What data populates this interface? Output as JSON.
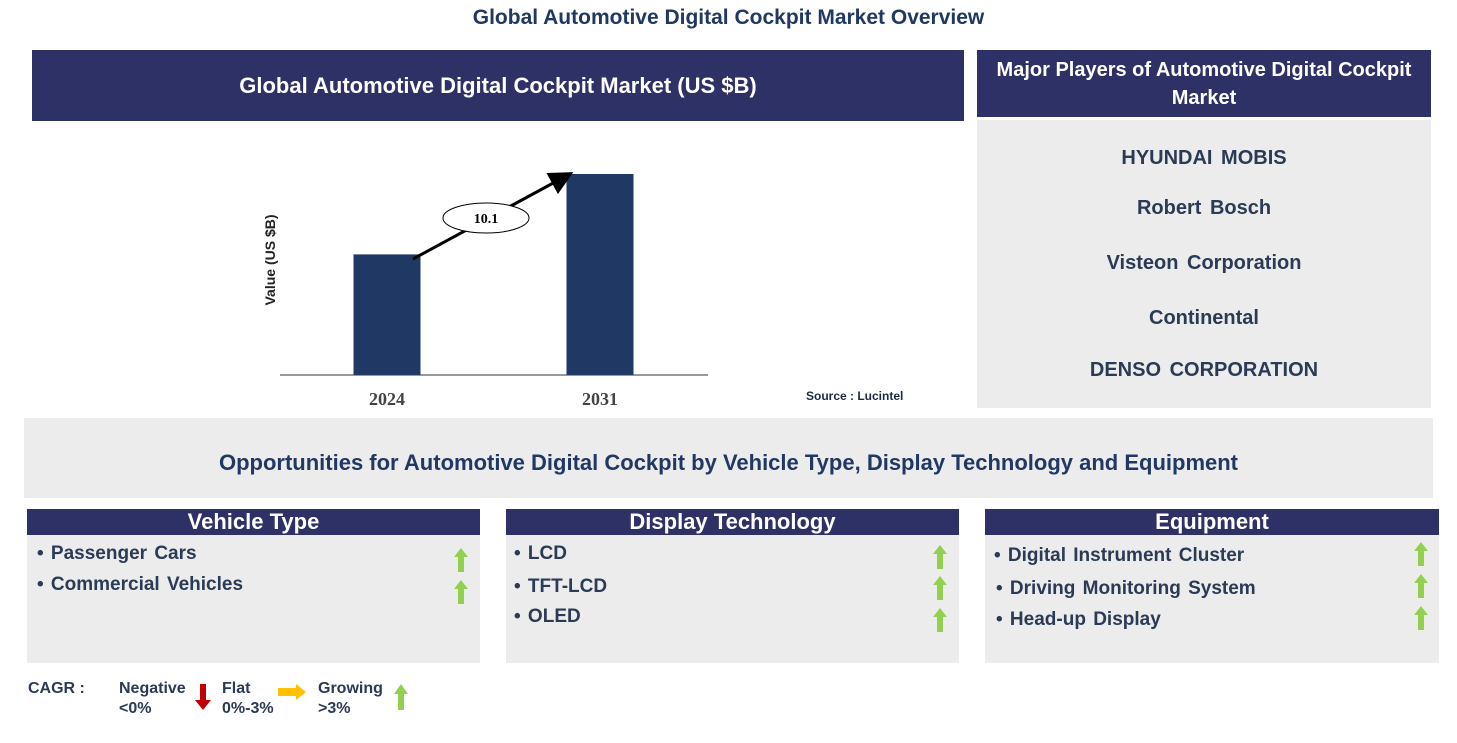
{
  "title": "Global Automotive Digital Cockpit Market Overview",
  "chart_header": "Global Automotive Digital Cockpit Market (US $B)",
  "chart_data": {
    "type": "bar",
    "title": "Global Automotive Digital Cockpit Market (US $B)",
    "categories": [
      "2024",
      "2031"
    ],
    "values": [
      0.6,
      1.0
    ],
    "ylabel": "Value (US $B)",
    "xlabel": "",
    "ylim": [
      0,
      1
    ],
    "grid": false,
    "annotation": "10.1",
    "source": "Source : Lucintel",
    "color": "#203864"
  },
  "players": {
    "header": "Major Players of Automotive Digital Cockpit Market",
    "items": [
      "HYUNDAI MOBIS",
      "Robert Bosch",
      "Visteon Corporation",
      "Continental",
      "DENSO CORPORATION"
    ]
  },
  "opportunities": "Opportunities for Automotive Digital Cockpit by Vehicle Type, Display Technology and Equipment",
  "segments": [
    {
      "title": "Vehicle Type",
      "items": [
        "• Passenger Cars",
        "• Commercial Vehicles"
      ]
    },
    {
      "title": "Display Technology",
      "items": [
        "• LCD",
        "• TFT-LCD",
        "• OLED"
      ]
    },
    {
      "title": "Equipment",
      "items": [
        "• Digital Instrument Cluster",
        "• Driving Monitoring System",
        "• Head-up Display"
      ]
    }
  ],
  "legend": {
    "label": "CAGR  :",
    "negative": "Negative",
    "negative_range": "<0%",
    "flat": "Flat",
    "flat_range": "0%-3%",
    "growing": "Growing",
    "growing_range": ">3%"
  },
  "colors": {
    "navy": "#2e3166",
    "growing": "#92d050",
    "negative": "#c00000",
    "flat": "#ffc000"
  }
}
